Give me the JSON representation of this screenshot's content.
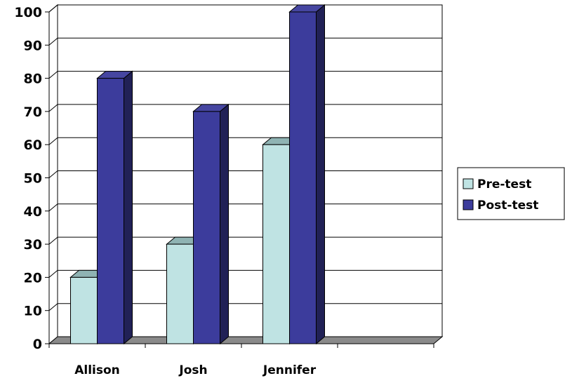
{
  "chart_data": {
    "type": "bar",
    "categories": [
      "Allison",
      "Josh",
      "Jennifer",
      ""
    ],
    "series": [
      {
        "name": "Pre-test",
        "values": [
          20,
          30,
          60,
          null
        ],
        "color": "#bfe3e3"
      },
      {
        "name": "Post-test",
        "values": [
          80,
          70,
          100,
          null
        ],
        "color": "#3c3c9c"
      }
    ],
    "ylim": [
      0,
      100
    ],
    "yticks": [
      "0",
      "10",
      "20",
      "30",
      "40",
      "50",
      "60",
      "70",
      "80",
      "90",
      "100"
    ],
    "grid": true,
    "legend_position": "right",
    "three_d": true
  }
}
